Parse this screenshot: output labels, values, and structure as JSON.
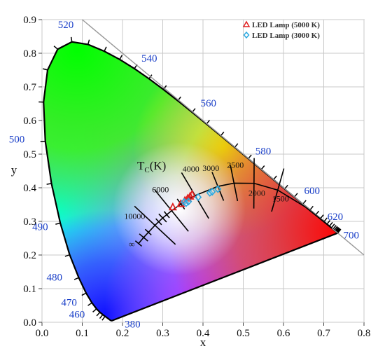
{
  "chart_data": {
    "type": "scatter",
    "xlabel": "x",
    "ylabel": "y",
    "xlim": [
      0.0,
      0.8
    ],
    "ylim": [
      0.0,
      0.9
    ],
    "xticks": [
      "0.0",
      "0.1",
      "0.2",
      "0.3",
      "0.4",
      "0.5",
      "0.6",
      "0.7",
      "0.8"
    ],
    "yticks": [
      "0.0",
      "0.1",
      "0.2",
      "0.3",
      "0.4",
      "0.5",
      "0.6",
      "0.7",
      "0.8",
      "0.9"
    ],
    "grid": true,
    "legend_position": "top-right",
    "locus_label": "Tc(K)",
    "wavelength_labels": [
      {
        "text": "380",
        "x": 0.1741,
        "y": 0.005
      },
      {
        "text": "460",
        "x": 0.144,
        "y": 0.0297
      },
      {
        "text": "470",
        "x": 0.1241,
        "y": 0.0578
      },
      {
        "text": "480",
        "x": 0.0913,
        "y": 0.1327
      },
      {
        "text": "490",
        "x": 0.0454,
        "y": 0.295
      },
      {
        "text": "500",
        "x": 0.0082,
        "y": 0.5384
      },
      {
        "text": "520",
        "x": 0.0743,
        "y": 0.8338
      },
      {
        "text": "540",
        "x": 0.2296,
        "y": 0.7543
      },
      {
        "text": "560",
        "x": 0.3731,
        "y": 0.6245
      },
      {
        "text": "580",
        "x": 0.5125,
        "y": 0.4866
      },
      {
        "text": "600",
        "x": 0.627,
        "y": 0.3725
      },
      {
        "text": "620",
        "x": 0.6915,
        "y": 0.3083
      },
      {
        "text": "700",
        "x": 0.7347,
        "y": 0.2653
      }
    ],
    "cct_labels": [
      {
        "text": "10000",
        "x": 0.2807,
        "y": 0.2884
      },
      {
        "text": "6000",
        "x": 0.3221,
        "y": 0.3318
      },
      {
        "text": "4000",
        "x": 0.3805,
        "y": 0.3768
      },
      {
        "text": "3000",
        "x": 0.4369,
        "y": 0.4041
      },
      {
        "text": "2500",
        "x": 0.477,
        "y": 0.4137
      },
      {
        "text": "2000",
        "x": 0.5267,
        "y": 0.4133
      },
      {
        "text": "1500",
        "x": 0.5857,
        "y": 0.3931
      },
      {
        "text": "∞",
        "x": 0.2399,
        "y": 0.2342
      }
    ],
    "series": [
      {
        "name": "LED Lamp (5000 K)",
        "marker": "triangle",
        "color": "#e02020",
        "points": [
          {
            "x": 0.325,
            "y": 0.342
          },
          {
            "x": 0.345,
            "y": 0.352
          },
          {
            "x": 0.355,
            "y": 0.362
          },
          {
            "x": 0.362,
            "y": 0.368
          },
          {
            "x": 0.368,
            "y": 0.374
          },
          {
            "x": 0.373,
            "y": 0.38
          }
        ]
      },
      {
        "name": "LED Lamp (3000 K)",
        "marker": "diamond",
        "color": "#2aa8e0",
        "points": [
          {
            "x": 0.353,
            "y": 0.358
          },
          {
            "x": 0.358,
            "y": 0.354
          },
          {
            "x": 0.364,
            "y": 0.359
          },
          {
            "x": 0.388,
            "y": 0.372
          },
          {
            "x": 0.417,
            "y": 0.385
          },
          {
            "x": 0.423,
            "y": 0.388
          },
          {
            "x": 0.437,
            "y": 0.396
          }
        ]
      }
    ]
  }
}
